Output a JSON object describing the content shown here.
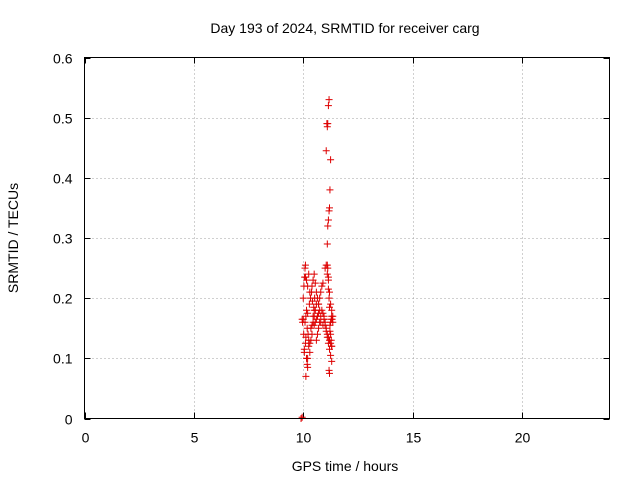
{
  "chart_data": {
    "type": "scatter",
    "title": "Day 193 of 2024, SRMTID for receiver carg",
    "xlabel": "GPS time / hours",
    "ylabel": "SRMTID / TECUs",
    "xlim": [
      0,
      24
    ],
    "ylim": [
      0,
      0.6
    ],
    "xticks": [
      0,
      5,
      10,
      15,
      20
    ],
    "yticks": [
      0,
      0.1,
      0.2,
      0.3,
      0.4,
      0.5,
      0.6
    ],
    "xtick_labels": [
      "0",
      "5",
      "10",
      "15",
      "20"
    ],
    "ytick_labels": [
      "0",
      "0.1",
      "0.2",
      "0.3",
      "0.4",
      "0.5",
      "0.6"
    ],
    "grid": true,
    "marker": "+",
    "color": "#dd0000",
    "series": [
      {
        "name": "SRMTID",
        "x": [
          9.95,
          9.97,
          10.0,
          10.02,
          10.05,
          10.0,
          10.03,
          10.06,
          10.08,
          10.1,
          10.05,
          10.1,
          10.12,
          10.15,
          10.18,
          10.2,
          10.08,
          10.12,
          10.15,
          10.18,
          10.22,
          10.25,
          10.1,
          10.15,
          10.2,
          10.25,
          10.3,
          10.12,
          10.2,
          10.25,
          10.3,
          10.35,
          10.4,
          10.45,
          10.5,
          10.2,
          10.28,
          10.33,
          10.38,
          10.42,
          10.48,
          10.52,
          10.3,
          10.35,
          10.4,
          10.45,
          10.5,
          10.55,
          10.6,
          10.4,
          10.45,
          10.5,
          10.55,
          10.6,
          10.65,
          10.7,
          10.5,
          10.55,
          10.6,
          10.65,
          10.7,
          10.75,
          10.8,
          10.6,
          10.65,
          10.7,
          10.75,
          10.8,
          10.85,
          10.9,
          10.95,
          10.7,
          10.75,
          10.8,
          10.85,
          10.9,
          10.95,
          11.0,
          11.05,
          11.1,
          11.15,
          11.2,
          11.25,
          11.3,
          10.9,
          10.95,
          11.0,
          11.05,
          11.1,
          11.15,
          11.2,
          11.25,
          11.3,
          11.0,
          11.05,
          11.1,
          11.15,
          11.2,
          11.25,
          11.3,
          11.35,
          11.1,
          11.12,
          11.15,
          11.18,
          11.2,
          11.22,
          11.25,
          11.05,
          11.08,
          11.1,
          11.12,
          11.15,
          11.18,
          11.1,
          11.12,
          11.15,
          11.15,
          11.18,
          11.2,
          11.18,
          11.2,
          11.22,
          11.25,
          11.28,
          11.3,
          11.32,
          11.35,
          11.22,
          11.25,
          11.28,
          11.3,
          9.9,
          9.95
        ],
        "y": [
          0.165,
          0.16,
          0.165,
          0.14,
          0.115,
          0.2,
          0.22,
          0.235,
          0.25,
          0.255,
          0.11,
          0.125,
          0.135,
          0.1,
          0.09,
          0.085,
          0.16,
          0.17,
          0.18,
          0.15,
          0.14,
          0.13,
          0.235,
          0.23,
          0.22,
          0.24,
          0.21,
          0.07,
          0.1,
          0.12,
          0.11,
          0.15,
          0.155,
          0.17,
          0.18,
          0.175,
          0.19,
          0.2,
          0.21,
          0.195,
          0.185,
          0.2,
          0.125,
          0.13,
          0.14,
          0.16,
          0.17,
          0.18,
          0.19,
          0.22,
          0.23,
          0.24,
          0.225,
          0.21,
          0.2,
          0.19,
          0.155,
          0.16,
          0.165,
          0.17,
          0.175,
          0.18,
          0.16,
          0.13,
          0.14,
          0.15,
          0.16,
          0.17,
          0.18,
          0.155,
          0.165,
          0.19,
          0.2,
          0.21,
          0.22,
          0.225,
          0.17,
          0.16,
          0.15,
          0.14,
          0.135,
          0.13,
          0.125,
          0.12,
          0.175,
          0.165,
          0.155,
          0.145,
          0.135,
          0.125,
          0.115,
          0.105,
          0.095,
          0.25,
          0.255,
          0.24,
          0.23,
          0.21,
          0.19,
          0.18,
          0.17,
          0.29,
          0.32,
          0.33,
          0.345,
          0.35,
          0.38,
          0.43,
          0.445,
          0.49,
          0.485,
          0.49,
          0.52,
          0.53,
          0.255,
          0.25,
          0.235,
          0.215,
          0.2,
          0.185,
          0.08,
          0.075,
          0.155,
          0.16,
          0.165,
          0.17,
          0.165,
          0.16,
          0.145,
          0.14,
          0.13,
          0.12,
          0.0,
          0.002
        ]
      }
    ]
  }
}
